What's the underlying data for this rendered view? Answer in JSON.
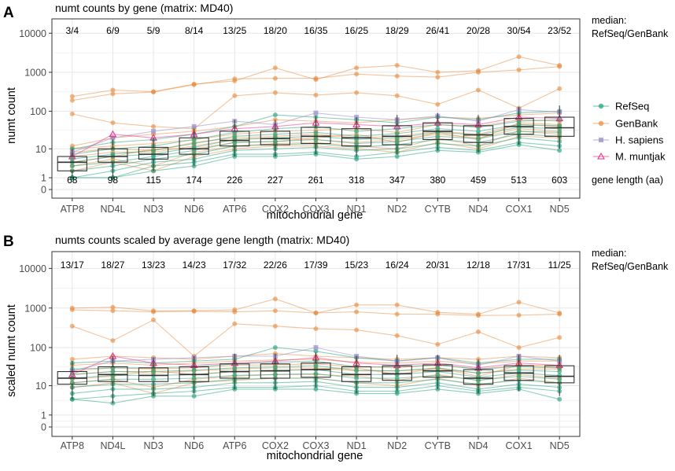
{
  "figure": {
    "legend": [
      {
        "name": "RefSeq",
        "color": "#1b9e77",
        "marker": "circle"
      },
      {
        "name": "GenBank",
        "color": "#e8893b",
        "marker": "circle"
      },
      {
        "name": "H. sapiens",
        "color": "#8e86c7",
        "marker": "square"
      },
      {
        "name": "M. muntjak",
        "color": "#e7298a",
        "marker": "triangle"
      }
    ],
    "colors": {
      "refseq": "#1b9e77",
      "genbank": "#e8893b",
      "hsapiens": "#8e86c7",
      "muntjak": "#e7298a",
      "grid": "#e6e6e6",
      "box": "#333333"
    }
  },
  "chart_data": [
    {
      "type": "line",
      "letter": "A",
      "title": "numt counts by gene (matrix: MD40)",
      "xlabel": "mitochondrial gene",
      "ylabel": "numt count",
      "yscale": "log1p",
      "yticks": [
        0,
        1,
        10,
        100,
        1000,
        10000
      ],
      "ytick_labels": [
        "0",
        "1",
        "10",
        "100",
        "1000",
        "10000"
      ],
      "ylim": [
        0,
        14000
      ],
      "categories": [
        "ATP8",
        "ND4L",
        "ND3",
        "ND6",
        "ATP6",
        "COX2",
        "COX3",
        "ND1",
        "ND2",
        "CYTB",
        "ND4",
        "COX1",
        "ND5"
      ],
      "top_annotations": [
        "3/4",
        "6/9",
        "5/9",
        "8/14",
        "13/25",
        "18/20",
        "16/35",
        "16/25",
        "18/29",
        "26/41",
        "20/28",
        "30/54",
        "23/52"
      ],
      "bottom_annotations": [
        "68",
        "98",
        "115",
        "174",
        "226",
        "227",
        "261",
        "318",
        "347",
        "380",
        "459",
        "513",
        "603"
      ],
      "top_side_label": [
        "median:",
        "RefSeq/GenBank"
      ],
      "bottom_side_label": "gene length (aa)",
      "boxes": [
        {
          "q1": 2,
          "median": 4,
          "q3": 6,
          "min": 1,
          "max": 10
        },
        {
          "q1": 4,
          "median": 6,
          "q3": 10,
          "min": 1,
          "max": 18
        },
        {
          "q1": 5,
          "median": 7,
          "q3": 11,
          "min": 2,
          "max": 20
        },
        {
          "q1": 7,
          "median": 10,
          "q3": 20,
          "min": 3,
          "max": 35
        },
        {
          "q1": 12,
          "median": 17,
          "q3": 30,
          "min": 6,
          "max": 60
        },
        {
          "q1": 13,
          "median": 19,
          "q3": 30,
          "min": 6,
          "max": 60
        },
        {
          "q1": 14,
          "median": 22,
          "q3": 38,
          "min": 7,
          "max": 75
        },
        {
          "q1": 12,
          "median": 20,
          "q3": 35,
          "min": 6,
          "max": 70
        },
        {
          "q1": 13,
          "median": 22,
          "q3": 42,
          "min": 7,
          "max": 80
        },
        {
          "q1": 18,
          "median": 30,
          "q3": 50,
          "min": 9,
          "max": 90
        },
        {
          "q1": 15,
          "median": 24,
          "q3": 42,
          "min": 8,
          "max": 80
        },
        {
          "q1": 25,
          "median": 40,
          "q3": 65,
          "min": 13,
          "max": 130
        },
        {
          "q1": 22,
          "median": 37,
          "q3": 70,
          "min": 10,
          "max": 140
        }
      ],
      "series": [
        {
          "name": "GenBank",
          "group": "genbank",
          "values": [
            240,
            350,
            320,
            500,
            600,
            1300,
            650,
            1300,
            1500,
            1000,
            1100,
            2500,
            1500
          ]
        },
        {
          "name": "GenBank",
          "group": "genbank",
          "values": [
            190,
            280,
            310,
            480,
            680,
            700,
            700,
            900,
            800,
            750,
            1000,
            1150,
            1400
          ]
        },
        {
          "name": "GenBank",
          "group": "genbank",
          "values": [
            85,
            50,
            40,
            35,
            250,
            300,
            260,
            300,
            250,
            150,
            350,
            120,
            380
          ]
        },
        {
          "name": "GenBank",
          "group": "genbank",
          "values": [
            12,
            20,
            25,
            30,
            40,
            60,
            55,
            50,
            60,
            70,
            65,
            80,
            90
          ]
        },
        {
          "name": "GenBank",
          "group": "genbank",
          "values": [
            10,
            12,
            14,
            18,
            25,
            30,
            32,
            35,
            28,
            45,
            40,
            60,
            55
          ]
        },
        {
          "name": "GenBank",
          "group": "genbank",
          "values": [
            8,
            10,
            9,
            15,
            20,
            22,
            25,
            20,
            22,
            30,
            25,
            45,
            40
          ]
        },
        {
          "name": "GenBank",
          "group": "genbank",
          "values": [
            6,
            8,
            8,
            12,
            18,
            20,
            18,
            15,
            18,
            25,
            20,
            35,
            30
          ]
        },
        {
          "name": "GenBank",
          "group": "genbank",
          "values": [
            4,
            6,
            10,
            10,
            15,
            16,
            20,
            25,
            15,
            28,
            18,
            50,
            45
          ]
        },
        {
          "name": "GenBank",
          "group": "genbank",
          "values": [
            3,
            5,
            3,
            8,
            12,
            14,
            15,
            12,
            10,
            20,
            12,
            30,
            25
          ]
        },
        {
          "name": "GenBank",
          "group": "genbank",
          "values": [
            2,
            4,
            2,
            6,
            10,
            12,
            12,
            10,
            8,
            15,
            10,
            22,
            20
          ]
        },
        {
          "name": "RefSeq",
          "group": "refseq",
          "values": [
            10,
            15,
            18,
            25,
            40,
            80,
            70,
            60,
            50,
            70,
            60,
            90,
            100
          ]
        },
        {
          "name": "RefSeq",
          "group": "refseq",
          "values": [
            7,
            10,
            12,
            18,
            28,
            35,
            40,
            30,
            35,
            45,
            38,
            55,
            60
          ]
        },
        {
          "name": "RefSeq",
          "group": "refseq",
          "values": [
            5,
            7,
            9,
            14,
            22,
            25,
            28,
            22,
            26,
            35,
            30,
            45,
            42
          ]
        },
        {
          "name": "RefSeq",
          "group": "refseq",
          "values": [
            4,
            6,
            7,
            11,
            18,
            20,
            22,
            18,
            20,
            28,
            24,
            38,
            35
          ]
        },
        {
          "name": "RefSeq",
          "group": "refseq",
          "values": [
            3,
            4,
            6,
            9,
            15,
            16,
            18,
            14,
            16,
            22,
            19,
            30,
            28
          ]
        },
        {
          "name": "RefSeq",
          "group": "refseq",
          "values": [
            2,
            3,
            5,
            7,
            12,
            13,
            14,
            11,
            13,
            18,
            15,
            25,
            22
          ]
        },
        {
          "name": "RefSeq",
          "group": "refseq",
          "values": [
            1,
            2,
            4,
            5,
            9,
            10,
            11,
            9,
            10,
            14,
            12,
            20,
            16
          ]
        },
        {
          "name": "RefSeq",
          "group": "refseq",
          "values": [
            1,
            1,
            3,
            4,
            7,
            7,
            8,
            6,
            8,
            11,
            9,
            15,
            12
          ]
        },
        {
          "name": "RefSeq",
          "group": "refseq",
          "values": [
            1,
            1,
            2,
            3,
            6,
            6,
            7,
            5,
            6,
            9,
            8,
            13,
            9
          ]
        },
        {
          "name": "H. sapiens",
          "group": "hsapiens",
          "values": [
            8,
            20,
            30,
            40,
            55,
            45,
            90,
            70,
            60,
            75,
            55,
            110,
            95
          ]
        },
        {
          "name": "M. muntjak",
          "group": "muntjak",
          "values": [
            6,
            25,
            20,
            25,
            35,
            40,
            50,
            45,
            40,
            50,
            45,
            70,
            65
          ]
        }
      ]
    },
    {
      "type": "line",
      "letter": "B",
      "title": "numts counts scaled by average gene length (matrix: MD40)",
      "xlabel": "mitochondrial gene",
      "ylabel": "scaled numt count",
      "yscale": "log1p",
      "yticks": [
        0,
        1,
        10,
        100,
        1000,
        10000
      ],
      "ytick_labels": [
        "0",
        "1",
        "10",
        "100",
        "1000",
        "10000"
      ],
      "ylim": [
        0,
        14000
      ],
      "categories": [
        "ATP8",
        "ND4L",
        "ND3",
        "ND6",
        "ATP6",
        "COX2",
        "COX3",
        "ND1",
        "ND2",
        "CYTB",
        "ND4",
        "COX1",
        "ND5"
      ],
      "top_annotations": [
        "13/17",
        "18/27",
        "13/23",
        "14/23",
        "17/32",
        "22/26",
        "17/39",
        "15/23",
        "16/24",
        "20/31",
        "12/18",
        "17/31",
        "11/25"
      ],
      "top_side_label": [
        "median:",
        "RefSeq/GenBank"
      ],
      "boxes": [
        {
          "q1": 11,
          "median": 16,
          "q3": 24,
          "min": 4,
          "max": 45
        },
        {
          "q1": 13,
          "median": 20,
          "q3": 32,
          "min": 3,
          "max": 60
        },
        {
          "q1": 13,
          "median": 19,
          "q3": 30,
          "min": 5,
          "max": 55
        },
        {
          "q1": 13,
          "median": 20,
          "q3": 32,
          "min": 6,
          "max": 60
        },
        {
          "q1": 16,
          "median": 24,
          "q3": 38,
          "min": 8,
          "max": 70
        },
        {
          "q1": 16,
          "median": 25,
          "q3": 38,
          "min": 8,
          "max": 70
        },
        {
          "q1": 17,
          "median": 27,
          "q3": 40,
          "min": 9,
          "max": 75
        },
        {
          "q1": 13,
          "median": 20,
          "q3": 32,
          "min": 6,
          "max": 60
        },
        {
          "q1": 14,
          "median": 21,
          "q3": 34,
          "min": 7,
          "max": 65
        },
        {
          "q1": 17,
          "median": 25,
          "q3": 36,
          "min": 8,
          "max": 65
        },
        {
          "q1": 11,
          "median": 16,
          "q3": 27,
          "min": 6,
          "max": 50
        },
        {
          "q1": 14,
          "median": 22,
          "q3": 34,
          "min": 7,
          "max": 65
        },
        {
          "q1": 12,
          "median": 18,
          "q3": 34,
          "min": 5,
          "max": 65
        }
      ],
      "series": [
        {
          "name": "GenBank",
          "group": "genbank",
          "values": [
            1000,
            1050,
            850,
            850,
            900,
            1700,
            750,
            1200,
            1200,
            780,
            700,
            1400,
            750
          ]
        },
        {
          "name": "GenBank",
          "group": "genbank",
          "values": [
            900,
            850,
            800,
            830,
            800,
            850,
            750,
            800,
            700,
            700,
            650,
            660,
            700
          ]
        },
        {
          "name": "GenBank",
          "group": "genbank",
          "values": [
            350,
            150,
            500,
            60,
            400,
            350,
            300,
            280,
            200,
            120,
            250,
            100,
            180
          ]
        },
        {
          "name": "GenBank",
          "group": "genbank",
          "values": [
            50,
            60,
            55,
            50,
            60,
            70,
            60,
            55,
            50,
            55,
            50,
            60,
            55
          ]
        },
        {
          "name": "GenBank",
          "group": "genbank",
          "values": [
            35,
            40,
            35,
            40,
            45,
            48,
            50,
            42,
            40,
            45,
            38,
            45,
            45
          ]
        },
        {
          "name": "GenBank",
          "group": "genbank",
          "values": [
            25,
            30,
            28,
            30,
            35,
            36,
            38,
            32,
            30,
            35,
            28,
            35,
            35
          ]
        },
        {
          "name": "GenBank",
          "group": "genbank",
          "values": [
            20,
            24,
            22,
            25,
            28,
            30,
            30,
            25,
            25,
            28,
            22,
            28,
            28
          ]
        },
        {
          "name": "GenBank",
          "group": "genbank",
          "values": [
            15,
            18,
            25,
            20,
            24,
            25,
            28,
            30,
            20,
            30,
            18,
            35,
            30
          ]
        },
        {
          "name": "GenBank",
          "group": "genbank",
          "values": [
            12,
            15,
            9,
            15,
            18,
            20,
            20,
            18,
            14,
            20,
            14,
            20,
            16
          ]
        },
        {
          "name": "GenBank",
          "group": "genbank",
          "values": [
            9,
            12,
            6,
            12,
            14,
            16,
            16,
            12,
            10,
            16,
            10,
            16,
            12
          ]
        },
        {
          "name": "RefSeq",
          "group": "refseq",
          "values": [
            40,
            45,
            40,
            45,
            50,
            100,
            80,
            55,
            45,
            55,
            40,
            50,
            50
          ]
        },
        {
          "name": "RefSeq",
          "group": "refseq",
          "values": [
            28,
            30,
            30,
            32,
            38,
            42,
            45,
            32,
            32,
            36,
            28,
            32,
            30
          ]
        },
        {
          "name": "RefSeq",
          "group": "refseq",
          "values": [
            20,
            24,
            24,
            26,
            30,
            32,
            34,
            26,
            25,
            30,
            22,
            26,
            24
          ]
        },
        {
          "name": "RefSeq",
          "group": "refseq",
          "values": [
            16,
            19,
            19,
            20,
            24,
            26,
            27,
            20,
            20,
            24,
            17,
            22,
            19
          ]
        },
        {
          "name": "RefSeq",
          "group": "refseq",
          "values": [
            12,
            15,
            15,
            16,
            19,
            20,
            21,
            16,
            16,
            19,
            14,
            18,
            15
          ]
        },
        {
          "name": "RefSeq",
          "group": "refseq",
          "values": [
            9,
            11,
            11,
            12,
            15,
            16,
            16,
            12,
            12,
            15,
            11,
            14,
            12
          ]
        },
        {
          "name": "RefSeq",
          "group": "refseq",
          "values": [
            6,
            8,
            8,
            9,
            12,
            12,
            13,
            9,
            9,
            12,
            8,
            11,
            9
          ]
        },
        {
          "name": "RefSeq",
          "group": "refseq",
          "values": [
            4,
            5,
            6,
            7,
            9,
            9,
            10,
            7,
            7,
            10,
            7,
            9,
            7
          ]
        },
        {
          "name": "RefSeq",
          "group": "refseq",
          "values": [
            4,
            3,
            5,
            5,
            8,
            8,
            8,
            6,
            6,
            8,
            6,
            8,
            4
          ]
        },
        {
          "name": "H. sapiens",
          "group": "hsapiens",
          "values": [
            25,
            45,
            50,
            55,
            60,
            60,
            100,
            60,
            45,
            55,
            35,
            60,
            45
          ]
        },
        {
          "name": "M. muntjak",
          "group": "muntjak",
          "values": [
            20,
            60,
            40,
            35,
            40,
            45,
            55,
            40,
            35,
            40,
            30,
            40,
            35
          ]
        }
      ]
    }
  ]
}
